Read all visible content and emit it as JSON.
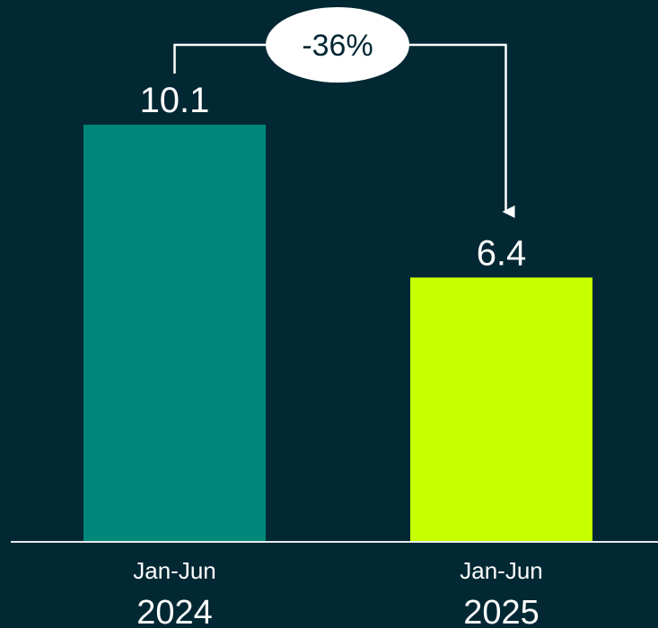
{
  "chart_data": {
    "type": "bar",
    "categories": [
      "Jan-Jun 2024",
      "Jan-Jun 2025"
    ],
    "period_labels": [
      "Jan-Jun",
      "Jan-Jun"
    ],
    "year_labels": [
      "2024",
      "2025"
    ],
    "values": [
      10.1,
      6.4
    ],
    "value_labels": [
      "10.1",
      "6.4"
    ],
    "bar_colors": [
      "#00877a",
      "#c6ff00"
    ],
    "change_annotation": "-36%",
    "ylim": [
      0,
      10.1
    ],
    "grid": false,
    "legend": "none"
  },
  "colors": {
    "background": "#022833",
    "baseline": "#e6ecee",
    "annotation_line": "#ffffff",
    "annotation_fill": "#ffffff",
    "text": "#ffffff"
  }
}
